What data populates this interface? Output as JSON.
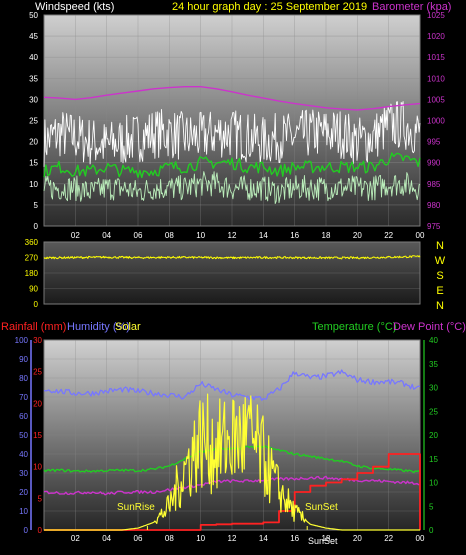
{
  "header": {
    "left_label": "Windspeed (kts)",
    "center_label": "24 hour graph day : 25 September 2019",
    "right_label": "Barometer (kpa)"
  },
  "colors": {
    "wind_label": "#ffffff",
    "title": "#ffff00",
    "barometer": "#cc33cc",
    "rainfall": "#ff2222",
    "humidity": "#7777ff",
    "solar": "#ffff33",
    "temperature": "#22cc22",
    "dewpoint": "#cc33cc",
    "wind_gust": "#ffffff",
    "wind_avg_light": "#bbeebb",
    "wind_avg": "#22cc22",
    "direction": "#ffff00"
  },
  "bottom_labels": {
    "rainfall": "Rainfall (mm)",
    "humidity": "Humidity (%)",
    "solar": "Solar",
    "temperature": "Temperature (°C)",
    "dewpoint": "Dew Point (°C)",
    "sunrise": "SunRise",
    "sunset": "SunSet",
    "sunset_small": "SunSet"
  },
  "chart_data": [
    {
      "type": "line",
      "name": "wind-barometer",
      "x_ticks": [
        "02",
        "04",
        "06",
        "08",
        "10",
        "12",
        "14",
        "16",
        "18",
        "20",
        "22",
        "00"
      ],
      "y_left_ticks": [
        "0",
        "5",
        "10",
        "15",
        "20",
        "25",
        "30",
        "35",
        "40",
        "45",
        "50"
      ],
      "y_left_range": [
        0,
        50
      ],
      "y_right_ticks": [
        "975",
        "980",
        "985",
        "990",
        "995",
        "1000",
        "1005",
        "1010",
        "1015",
        "1020",
        "1025"
      ],
      "y_right_range": [
        975,
        1025
      ],
      "hours": [
        0,
        1,
        2,
        3,
        4,
        5,
        6,
        7,
        8,
        9,
        10,
        11,
        12,
        13,
        14,
        15,
        16,
        17,
        18,
        19,
        20,
        21,
        22,
        23,
        24
      ],
      "gust": [
        20,
        22,
        21,
        20,
        19,
        20,
        21,
        22,
        22,
        21,
        21,
        22,
        22,
        21,
        20,
        21,
        21,
        22,
        22,
        22,
        20,
        21,
        24,
        24,
        22
      ],
      "wind_avg": [
        13,
        14,
        13,
        13,
        14,
        13,
        13,
        13,
        14,
        14,
        15,
        15,
        15,
        14,
        14,
        13,
        14,
        14,
        14,
        14,
        14,
        14,
        16,
        16,
        15
      ],
      "wind_low": [
        9,
        9,
        9,
        8,
        9,
        9,
        8,
        9,
        9,
        9,
        10,
        10,
        9,
        9,
        9,
        8,
        9,
        9,
        9,
        9,
        9,
        9,
        10,
        10,
        9
      ],
      "barometer": [
        1005.5,
        1005.3,
        1005,
        1005.4,
        1006,
        1006.5,
        1007,
        1007.5,
        1007.8,
        1008,
        1008,
        1007.5,
        1006.8,
        1006,
        1005.3,
        1004.6,
        1004,
        1003.5,
        1003,
        1002.7,
        1002.5,
        1002.8,
        1003.3,
        1003.7,
        1004
      ]
    },
    {
      "type": "line",
      "name": "wind-direction",
      "y_left_ticks": [
        "0",
        "90",
        "180",
        "270",
        "360"
      ],
      "y_left_range": [
        0,
        360
      ],
      "compass": [
        "N",
        "W",
        "S",
        "E",
        "N"
      ],
      "hours": [
        0,
        2,
        4,
        6,
        8,
        10,
        12,
        14,
        16,
        18,
        20,
        22,
        24
      ],
      "direction": [
        268,
        270,
        272,
        269,
        271,
        270,
        268,
        270,
        269,
        268,
        268,
        272,
        276
      ]
    },
    {
      "type": "line",
      "name": "rain-humidity-temp",
      "x_ticks": [
        "02",
        "04",
        "06",
        "08",
        "10",
        "12",
        "14",
        "16",
        "18",
        "20",
        "22",
        "00"
      ],
      "y_humidity_ticks": [
        "0",
        "10",
        "20",
        "30",
        "40",
        "50",
        "60",
        "70",
        "80",
        "90",
        "100"
      ],
      "y_humidity_range": [
        0,
        100
      ],
      "y_rain_ticks": [
        "0",
        "5",
        "10",
        "15",
        "20",
        "25",
        "30"
      ],
      "y_rain_range": [
        0,
        30
      ],
      "y_temp_ticks": [
        "0",
        "5",
        "10",
        "15",
        "20",
        "25",
        "30",
        "35",
        "40"
      ],
      "y_temp_range": [
        0,
        40
      ],
      "hours": [
        0,
        1,
        2,
        3,
        4,
        5,
        6,
        7,
        8,
        9,
        10,
        11,
        12,
        13,
        14,
        15,
        16,
        17,
        18,
        19,
        20,
        21,
        22,
        23,
        24
      ],
      "humidity": [
        74,
        73,
        72,
        72,
        73,
        74,
        73,
        72,
        71,
        70,
        77,
        74,
        71,
        70,
        69,
        74,
        83,
        80,
        81,
        83,
        79,
        78,
        78,
        77,
        74
      ],
      "temperature": [
        12.5,
        12.6,
        12.4,
        12.4,
        12.5,
        12.6,
        12.5,
        12.8,
        13.5,
        15,
        16.5,
        17,
        17,
        17.5,
        17.5,
        16.8,
        16,
        15.5,
        15,
        14.5,
        13.5,
        13,
        12.8,
        12.5,
        12.2
      ],
      "dewpoint": [
        8,
        7.8,
        7.8,
        8,
        7.6,
        8,
        8,
        8,
        8.5,
        9,
        9.5,
        10.2,
        10.3,
        10.3,
        10.5,
        10.7,
        10.8,
        11,
        11,
        10.7,
        10.5,
        10.4,
        10.2,
        10,
        9.8
      ],
      "rainfall": [
        0,
        0,
        0,
        0,
        0,
        0,
        0,
        0,
        0,
        0,
        0.8,
        0.9,
        1,
        1,
        1.2,
        3,
        6,
        7,
        7.5,
        8,
        9,
        10,
        12,
        12,
        12
      ],
      "solar": [
        0,
        0,
        0,
        0,
        0,
        0,
        1,
        4,
        13,
        34,
        50,
        45,
        50,
        52,
        40,
        22,
        10,
        3,
        1,
        0,
        0,
        0,
        0,
        0,
        0
      ],
      "solar_scale_max": 100,
      "sunrise_hour": 6.6,
      "sunset_hour": 16.8
    }
  ]
}
